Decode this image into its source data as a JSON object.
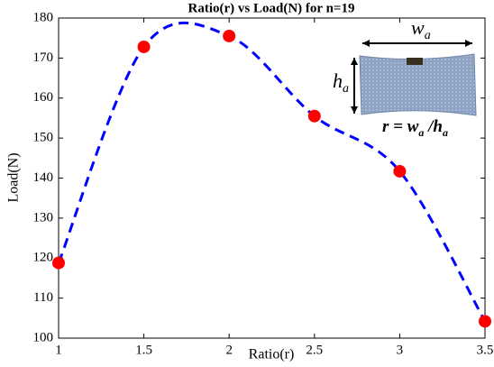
{
  "chart_data": {
    "type": "line",
    "title": "Ratio(r) vs Load(N) for n=19",
    "x_label": "Ratio(r)",
    "y_label": "Load(N)",
    "x": [
      1,
      1.5,
      2,
      2.5,
      3,
      3.5
    ],
    "series": [
      {
        "color": "#0000ff",
        "marker_color": "#ff0000",
        "line_style": "dashed",
        "smooth": true,
        "values": [
          118.8,
          172.8,
          175.5,
          155.5,
          141.7,
          104.2
        ]
      }
    ],
    "xlim": [
      1,
      3.5
    ],
    "xticks": [
      1,
      1.5,
      2,
      2.5,
      3,
      3.5
    ],
    "ylim": [
      100,
      180
    ],
    "yticks": [
      100,
      110,
      120,
      130,
      140,
      150,
      160,
      170,
      180
    ],
    "grid": false,
    "inset_labels": {
      "width": {
        "base": "w",
        "sub": "a"
      },
      "height": {
        "base": "h",
        "sub": "a"
      },
      "formula": {
        "left": "r = w",
        "sub1": "a",
        "mid": " /h",
        "sub2": "a"
      }
    }
  }
}
